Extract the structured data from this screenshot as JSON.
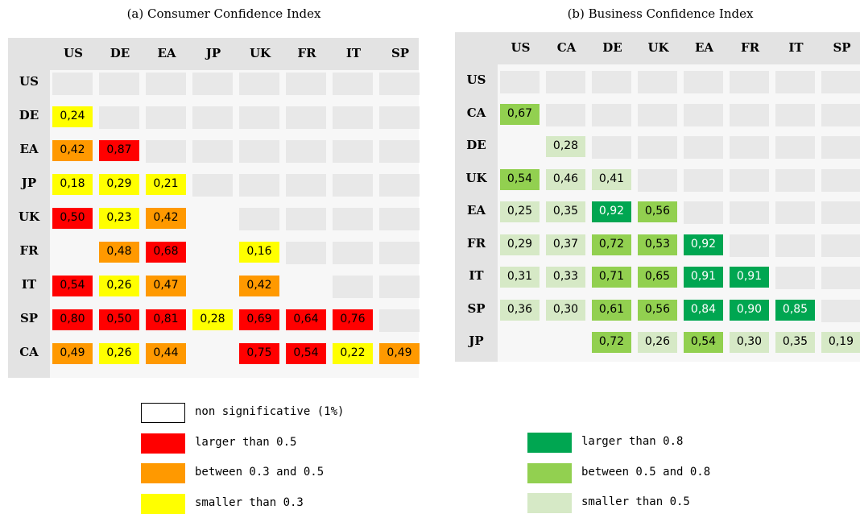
{
  "panels": [
    {
      "title": "(a) Consumer Confidence Index",
      "columns": [
        "US",
        "DE",
        "EA",
        "JP",
        "UK",
        "FR",
        "IT",
        "SP"
      ],
      "rows": [
        {
          "label": "US",
          "cells": []
        },
        {
          "label": "DE",
          "cells": [
            {
              "t": "0,24",
              "k": 3
            }
          ]
        },
        {
          "label": "EA",
          "cells": [
            {
              "t": "0,42",
              "k": 2
            },
            {
              "t": "0,87",
              "k": 1
            }
          ]
        },
        {
          "label": "JP",
          "cells": [
            {
              "t": "0,18",
              "k": 3
            },
            {
              "t": "0,29",
              "k": 3
            },
            {
              "t": "0,21",
              "k": 3
            }
          ]
        },
        {
          "label": "UK",
          "cells": [
            {
              "t": "0,50",
              "k": 1
            },
            {
              "t": "0,23",
              "k": 3
            },
            {
              "t": "0,42",
              "k": 2
            }
          ]
        },
        {
          "label": "FR",
          "cells": [
            null,
            {
              "t": "0,48",
              "k": 2
            },
            {
              "t": "0,68",
              "k": 1
            },
            null,
            {
              "t": "0,16",
              "k": 3
            }
          ]
        },
        {
          "label": "IT",
          "cells": [
            {
              "t": "0,54",
              "k": 1
            },
            {
              "t": "0,26",
              "k": 3
            },
            {
              "t": "0,47",
              "k": 2
            },
            null,
            {
              "t": "0,42",
              "k": 2
            }
          ]
        },
        {
          "label": "SP",
          "cells": [
            {
              "t": "0,80",
              "k": 1
            },
            {
              "t": "0,50",
              "k": 1
            },
            {
              "t": "0,81",
              "k": 1
            },
            {
              "t": "0,28",
              "k": 3
            },
            {
              "t": "0,69",
              "k": 1
            },
            {
              "t": "0,64",
              "k": 1
            },
            {
              "t": "0,76",
              "k": 1
            }
          ]
        },
        {
          "label": "CA",
          "cells": [
            {
              "t": "0,49",
              "k": 2
            },
            {
              "t": "0,26",
              "k": 3
            },
            {
              "t": "0,44",
              "k": 2
            },
            null,
            {
              "t": "0,75",
              "k": 1
            },
            {
              "t": "0,54",
              "k": 1
            },
            {
              "t": "0,22",
              "k": 3
            },
            {
              "t": "0,49",
              "k": 2
            }
          ]
        }
      ],
      "legend": [
        {
          "label": "non significative (1%)",
          "color": "#ffffff"
        },
        {
          "label": "larger than 0.5",
          "color": "#ff0000"
        },
        {
          "label": "between 0.3 and 0.5",
          "color": "#ff9900"
        },
        {
          "label": "smaller than 0.3",
          "color": "#ffff00"
        }
      ]
    },
    {
      "title": "(b) Business Confidence Index",
      "columns": [
        "US",
        "CA",
        "DE",
        "UK",
        "EA",
        "FR",
        "IT",
        "SP"
      ],
      "rows": [
        {
          "label": "US",
          "cells": []
        },
        {
          "label": "CA",
          "cells": [
            {
              "t": "0,67",
              "k": 1
            }
          ]
        },
        {
          "label": "DE",
          "cells": [
            null,
            {
              "t": "0,28",
              "k": 2
            }
          ]
        },
        {
          "label": "UK",
          "cells": [
            {
              "t": "0,54",
              "k": 1
            },
            {
              "t": "0,46",
              "k": 2
            },
            {
              "t": "0,41",
              "k": 2
            }
          ]
        },
        {
          "label": "EA",
          "cells": [
            {
              "t": "0,25",
              "k": 2
            },
            {
              "t": "0,35",
              "k": 2
            },
            {
              "t": "0,92",
              "k": 0
            },
            {
              "t": "0,56",
              "k": 1
            }
          ]
        },
        {
          "label": "FR",
          "cells": [
            {
              "t": "0,29",
              "k": 2
            },
            {
              "t": "0,37",
              "k": 2
            },
            {
              "t": "0,72",
              "k": 1
            },
            {
              "t": "0,53",
              "k": 1
            },
            {
              "t": "0,92",
              "k": 0
            }
          ]
        },
        {
          "label": "IT",
          "cells": [
            {
              "t": "0,31",
              "k": 2
            },
            {
              "t": "0,33",
              "k": 2
            },
            {
              "t": "0,71",
              "k": 1
            },
            {
              "t": "0,65",
              "k": 1
            },
            {
              "t": "0,91",
              "k": 0
            },
            {
              "t": "0,91",
              "k": 0
            }
          ]
        },
        {
          "label": "SP",
          "cells": [
            {
              "t": "0,36",
              "k": 2
            },
            {
              "t": "0,30",
              "k": 2
            },
            {
              "t": "0,61",
              "k": 1
            },
            {
              "t": "0,56",
              "k": 1
            },
            {
              "t": "0,84",
              "k": 0
            },
            {
              "t": "0,90",
              "k": 0
            },
            {
              "t": "0,85",
              "k": 0
            }
          ]
        },
        {
          "label": "JP",
          "cells": [
            null,
            null,
            {
              "t": "0,72",
              "k": 1
            },
            {
              "t": "0,26",
              "k": 2
            },
            {
              "t": "0,54",
              "k": 1
            },
            {
              "t": "0,30",
              "k": 2
            },
            {
              "t": "0,35",
              "k": 2
            },
            {
              "t": "0,19",
              "k": 2
            }
          ]
        }
      ],
      "legend": [
        {
          "label": "larger than 0.8",
          "color": "#00a651"
        },
        {
          "label": "between 0.5 and 0.8",
          "color": "#92d050"
        },
        {
          "label": "smaller than 0.5",
          "color": "#d6e9c6"
        }
      ]
    }
  ]
}
